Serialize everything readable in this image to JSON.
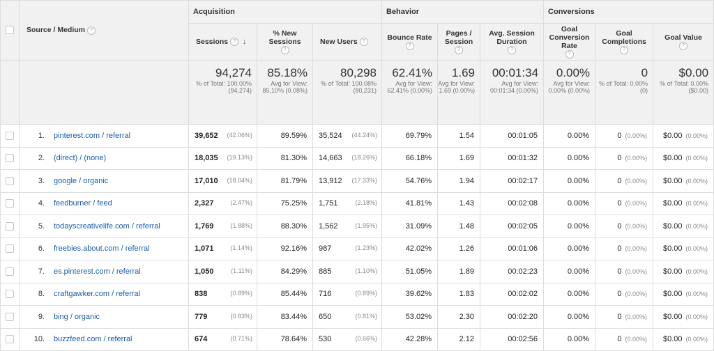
{
  "groups": {
    "acquisition": "Acquisition",
    "behavior": "Behavior",
    "conversions": "Conversions"
  },
  "columns": {
    "source_medium": "Source / Medium",
    "sessions": "Sessions",
    "new_sessions": "% New Sessions",
    "new_users": "New Users",
    "bounce_rate": "Bounce Rate",
    "pages_session": "Pages / Session",
    "avg_duration": "Avg. Session Duration",
    "goal_conv_rate": "Goal Conversion Rate",
    "goal_completions": "Goal Completions",
    "goal_value": "Goal Value"
  },
  "help_icon": "?",
  "sort_icon": "↓",
  "totals": {
    "sessions": {
      "value": "94,274",
      "sub": "% of Total: 100.00% (94,274)"
    },
    "new_sessions": {
      "value": "85.18%",
      "sub": "Avg for View: 85.10% (0.08%)"
    },
    "new_users": {
      "value": "80,298",
      "sub": "% of Total: 100.08% (80,231)"
    },
    "bounce_rate": {
      "value": "62.41%",
      "sub": "Avg for View: 62.41% (0.00%)"
    },
    "pages_session": {
      "value": "1.69",
      "sub": "Avg for View: 1.69 (0.00%)"
    },
    "avg_duration": {
      "value": "00:01:34",
      "sub": "Avg for View: 00:01:34 (0.00%)"
    },
    "goal_conv_rate": {
      "value": "0.00%",
      "sub": "Avg for View: 0.00% (0.00%)"
    },
    "goal_completions": {
      "value": "0",
      "sub": "% of Total: 0.00% (0)"
    },
    "goal_value": {
      "value": "$0.00",
      "sub": "% of Total: 0.00% ($0.00)"
    }
  },
  "rows": [
    {
      "idx": "1.",
      "source": "pinterest.com / referral",
      "sessions": "39,652",
      "sessions_pct": "(42.06%)",
      "new_sessions": "89.59%",
      "new_users": "35,524",
      "new_users_pct": "(44.24%)",
      "bounce": "69.79%",
      "pages": "1.54",
      "duration": "00:01:05",
      "conv": "0.00%",
      "comp": "0",
      "comp_pct": "(0.00%)",
      "value": "$0.00",
      "value_pct": "(0.00%)"
    },
    {
      "idx": "2.",
      "source": "(direct) / (none)",
      "sessions": "18,035",
      "sessions_pct": "(19.13%)",
      "new_sessions": "81.30%",
      "new_users": "14,663",
      "new_users_pct": "(18.26%)",
      "bounce": "66.18%",
      "pages": "1.69",
      "duration": "00:01:32",
      "conv": "0.00%",
      "comp": "0",
      "comp_pct": "(0.00%)",
      "value": "$0.00",
      "value_pct": "(0.00%)"
    },
    {
      "idx": "3.",
      "source": "google / organic",
      "sessions": "17,010",
      "sessions_pct": "(18.04%)",
      "new_sessions": "81.79%",
      "new_users": "13,912",
      "new_users_pct": "(17.33%)",
      "bounce": "54.76%",
      "pages": "1.94",
      "duration": "00:02:17",
      "conv": "0.00%",
      "comp": "0",
      "comp_pct": "(0.00%)",
      "value": "$0.00",
      "value_pct": "(0.00%)"
    },
    {
      "idx": "4.",
      "source": "feedburner / feed",
      "sessions": "2,327",
      "sessions_pct": "(2.47%)",
      "new_sessions": "75.25%",
      "new_users": "1,751",
      "new_users_pct": "(2.18%)",
      "bounce": "41.81%",
      "pages": "1.43",
      "duration": "00:02:08",
      "conv": "0.00%",
      "comp": "0",
      "comp_pct": "(0.00%)",
      "value": "$0.00",
      "value_pct": "(0.00%)"
    },
    {
      "idx": "5.",
      "source": "todayscreativelife.com / referral",
      "sessions": "1,769",
      "sessions_pct": "(1.88%)",
      "new_sessions": "88.30%",
      "new_users": "1,562",
      "new_users_pct": "(1.95%)",
      "bounce": "31.09%",
      "pages": "1.48",
      "duration": "00:02:05",
      "conv": "0.00%",
      "comp": "0",
      "comp_pct": "(0.00%)",
      "value": "$0.00",
      "value_pct": "(0.00%)"
    },
    {
      "idx": "6.",
      "source": "freebies.about.com / referral",
      "sessions": "1,071",
      "sessions_pct": "(1.14%)",
      "new_sessions": "92.16%",
      "new_users": "987",
      "new_users_pct": "(1.23%)",
      "bounce": "42.02%",
      "pages": "1.26",
      "duration": "00:01:06",
      "conv": "0.00%",
      "comp": "0",
      "comp_pct": "(0.00%)",
      "value": "$0.00",
      "value_pct": "(0.00%)"
    },
    {
      "idx": "7.",
      "source": "es.pinterest.com / referral",
      "sessions": "1,050",
      "sessions_pct": "(1.11%)",
      "new_sessions": "84.29%",
      "new_users": "885",
      "new_users_pct": "(1.10%)",
      "bounce": "51.05%",
      "pages": "1.89",
      "duration": "00:02:23",
      "conv": "0.00%",
      "comp": "0",
      "comp_pct": "(0.00%)",
      "value": "$0.00",
      "value_pct": "(0.00%)"
    },
    {
      "idx": "8.",
      "source": "craftgawker.com / referral",
      "sessions": "838",
      "sessions_pct": "(0.89%)",
      "new_sessions": "85.44%",
      "new_users": "716",
      "new_users_pct": "(0.89%)",
      "bounce": "39.62%",
      "pages": "1.83",
      "duration": "00:02:02",
      "conv": "0.00%",
      "comp": "0",
      "comp_pct": "(0.00%)",
      "value": "$0.00",
      "value_pct": "(0.00%)"
    },
    {
      "idx": "9.",
      "source": "bing / organic",
      "sessions": "779",
      "sessions_pct": "(0.83%)",
      "new_sessions": "83.44%",
      "new_users": "650",
      "new_users_pct": "(0.81%)",
      "bounce": "53.02%",
      "pages": "2.30",
      "duration": "00:02:20",
      "conv": "0.00%",
      "comp": "0",
      "comp_pct": "(0.00%)",
      "value": "$0.00",
      "value_pct": "(0.00%)"
    },
    {
      "idx": "10.",
      "source": "buzzfeed.com / referral",
      "sessions": "674",
      "sessions_pct": "(0.71%)",
      "new_sessions": "78.64%",
      "new_users": "530",
      "new_users_pct": "(0.66%)",
      "bounce": "42.28%",
      "pages": "2.12",
      "duration": "00:02:56",
      "conv": "0.00%",
      "comp": "0",
      "comp_pct": "(0.00%)",
      "value": "$0.00",
      "value_pct": "(0.00%)"
    }
  ]
}
